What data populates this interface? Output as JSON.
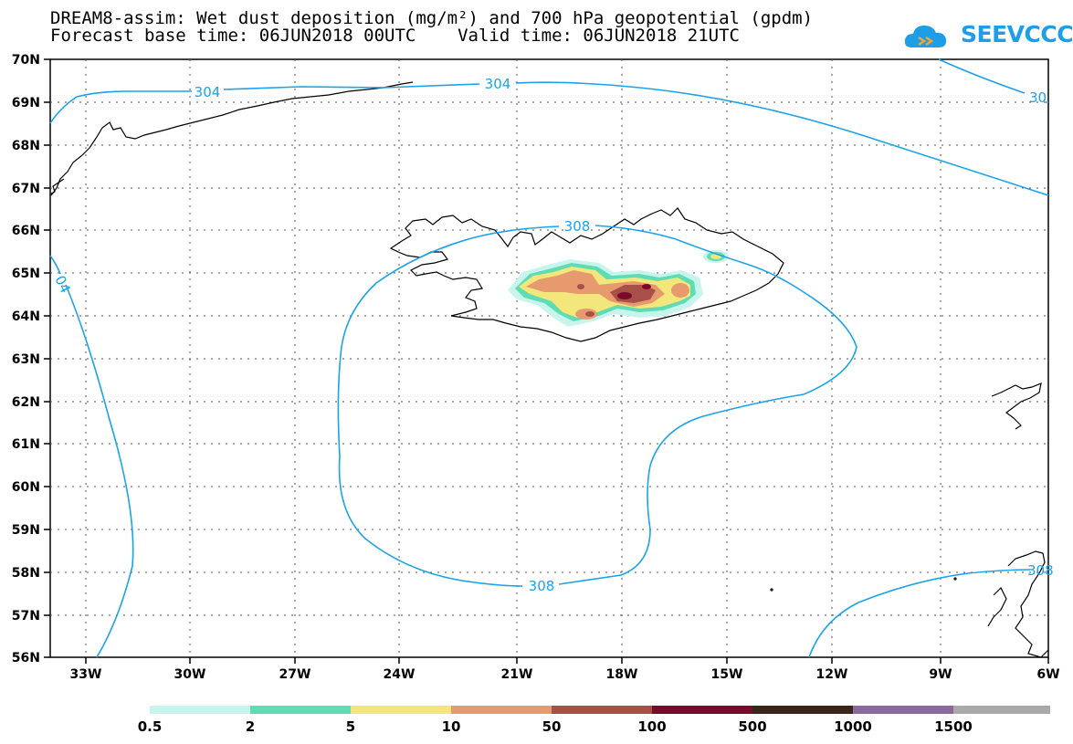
{
  "header": {
    "title_line1": "DREAM8-assim: Wet dust deposition (mg/m²) and 700 hPa geopotential (gpdm)",
    "title_line2": "Forecast base time: 06JUN2018 00UTC    Valid time: 06JUN2018 21UTC"
  },
  "logo": {
    "text": "SEEVCCC",
    "color": "#1f9ee8"
  },
  "map": {
    "lat_labels": [
      "70N",
      "69N",
      "68N",
      "67N",
      "66N",
      "65N",
      "64N",
      "63N",
      "62N",
      "61N",
      "60N",
      "59N",
      "58N",
      "57N",
      "56N"
    ],
    "lon_labels": [
      "33W",
      "30W",
      "27W",
      "24W",
      "21W",
      "18W",
      "15W",
      "12W",
      "9W",
      "6W"
    ],
    "contour_labels": [
      "304",
      "304",
      "30",
      "308",
      "04",
      "308",
      "308"
    ],
    "contour_color": "#1aa3ea"
  },
  "colorbar": {
    "labels": [
      "0.5",
      "2",
      "5",
      "10",
      "50",
      "100",
      "500",
      "1000",
      "1500"
    ],
    "colors": [
      "#c8f4ee",
      "#5fdcb4",
      "#f3e77c",
      "#e69a6e",
      "#a85048",
      "#7a0a2a",
      "#3b2518",
      "#8a6a9c",
      "#a9a9a9"
    ]
  }
}
